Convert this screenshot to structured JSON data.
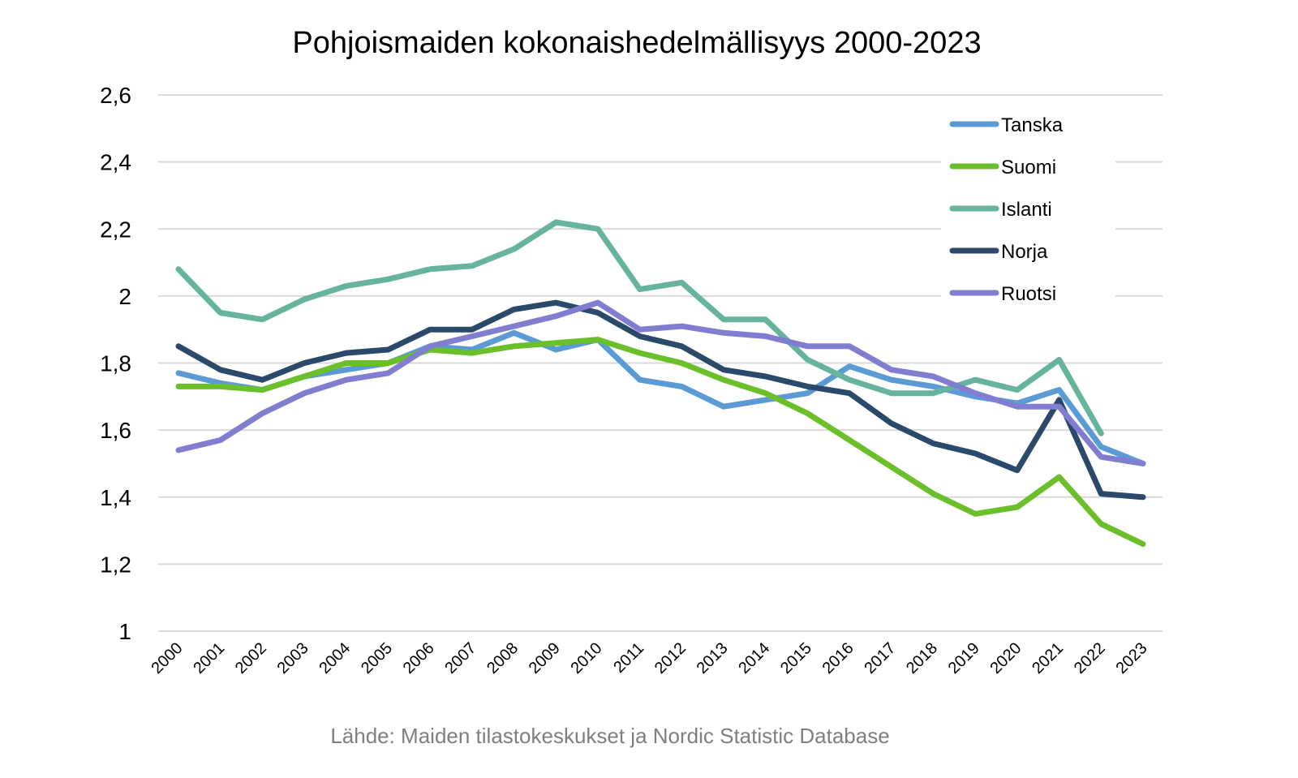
{
  "chart_data": {
    "type": "line",
    "title": "Pohjoismaiden kokonaishedelmällisyys 2000-2023",
    "source": "Lähde: Maiden tilastokeskukset ja Nordic Statistic Database",
    "xlabel": "",
    "ylabel": "",
    "ylim": [
      1,
      2.6
    ],
    "yticks": [
      "1",
      "1,2",
      "1,4",
      "1,6",
      "1,8",
      "2",
      "2,2",
      "2,4",
      "2,6"
    ],
    "grid": true,
    "legend_position": "top-right",
    "x": [
      "2000",
      "2001",
      "2002",
      "2003",
      "2004",
      "2005",
      "2006",
      "2007",
      "2008",
      "2009",
      "2010",
      "2011",
      "2012",
      "2013",
      "2014",
      "2015",
      "2016",
      "2017",
      "2018",
      "2019",
      "2020",
      "2021",
      "2022",
      "2023"
    ],
    "series": [
      {
        "name": "Tanska",
        "color": "#5b9bd5",
        "values": [
          1.77,
          1.74,
          1.72,
          1.76,
          1.78,
          1.8,
          1.85,
          1.84,
          1.89,
          1.84,
          1.87,
          1.75,
          1.73,
          1.67,
          1.69,
          1.71,
          1.79,
          1.75,
          1.73,
          1.7,
          1.68,
          1.72,
          1.55,
          1.5
        ]
      },
      {
        "name": "Suomi",
        "color": "#6abf2a",
        "values": [
          1.73,
          1.73,
          1.72,
          1.76,
          1.8,
          1.8,
          1.84,
          1.83,
          1.85,
          1.86,
          1.87,
          1.83,
          1.8,
          1.75,
          1.71,
          1.65,
          1.57,
          1.49,
          1.41,
          1.35,
          1.37,
          1.46,
          1.32,
          1.26
        ]
      },
      {
        "name": "Islanti",
        "color": "#66b39e",
        "values": [
          2.08,
          1.95,
          1.93,
          1.99,
          2.03,
          2.05,
          2.08,
          2.09,
          2.14,
          2.22,
          2.2,
          2.02,
          2.04,
          1.93,
          1.93,
          1.81,
          1.75,
          1.71,
          1.71,
          1.75,
          1.72,
          1.81,
          1.59,
          null
        ]
      },
      {
        "name": "Norja",
        "color": "#2b4a6b",
        "values": [
          1.85,
          1.78,
          1.75,
          1.8,
          1.83,
          1.84,
          1.9,
          1.9,
          1.96,
          1.98,
          1.95,
          1.88,
          1.85,
          1.78,
          1.76,
          1.73,
          1.71,
          1.62,
          1.56,
          1.53,
          1.48,
          1.69,
          1.41,
          1.4
        ]
      },
      {
        "name": "Ruotsi",
        "color": "#817dd0",
        "values": [
          1.54,
          1.57,
          1.65,
          1.71,
          1.75,
          1.77,
          1.85,
          1.88,
          1.91,
          1.94,
          1.98,
          1.9,
          1.91,
          1.89,
          1.88,
          1.85,
          1.85,
          1.78,
          1.76,
          1.71,
          1.67,
          1.67,
          1.52,
          1.5
        ]
      }
    ]
  }
}
